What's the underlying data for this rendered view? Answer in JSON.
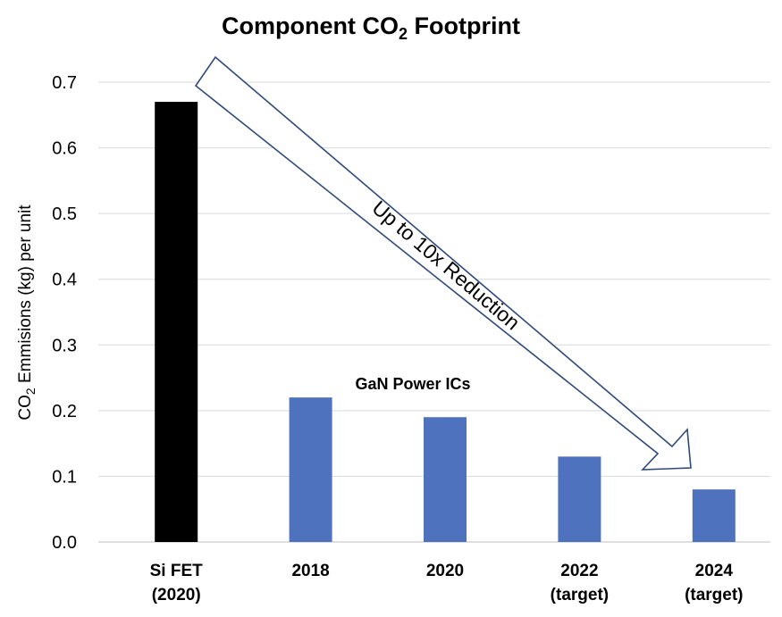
{
  "chart_data": {
    "type": "bar",
    "title": "Component CO",
    "title_sub": "2",
    "title_suffix": " Footprint",
    "ylabel_prefix": "CO",
    "ylabel_sub": "2",
    "ylabel_suffix": " Emmisions (kg) per unit",
    "xlabel": "",
    "ylim": [
      0,
      0.7
    ],
    "yticks": [
      "0.0",
      "0.1",
      "0.2",
      "0.3",
      "0.4",
      "0.5",
      "0.6",
      "0.7"
    ],
    "categories": [
      [
        "Si FET",
        "(2020)"
      ],
      [
        "2018"
      ],
      [
        "2020"
      ],
      [
        "2022",
        "(target)"
      ],
      [
        "2024",
        "(target)"
      ]
    ],
    "values": [
      0.67,
      0.22,
      0.19,
      0.13,
      0.08
    ],
    "colors": [
      "#000000",
      "#4f72be",
      "#4f72be",
      "#4f72be",
      "#4f72be"
    ],
    "grid": true,
    "annotations": {
      "group_label": "GaN Power ICs",
      "arrow_label": "Up to 10x Reduction"
    }
  }
}
